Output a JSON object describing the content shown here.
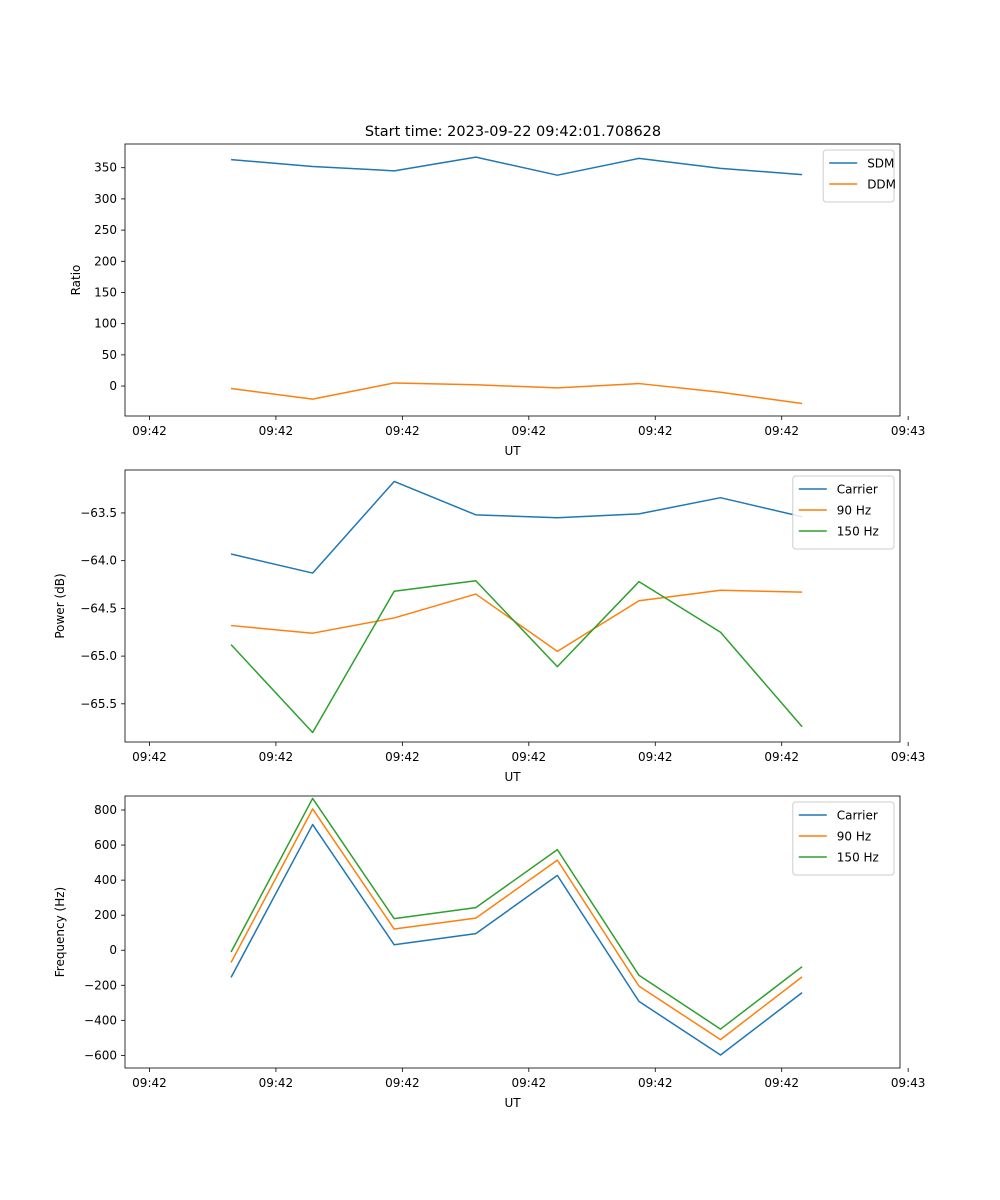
{
  "figure_title": "Start time: 2023-09-22 09:42:01.708628",
  "colors": {
    "blue": "#1f77b4",
    "orange": "#ff7f0e",
    "green": "#2ca02c"
  },
  "chart_data": [
    {
      "type": "line",
      "title": "Start time: 2023-09-22 09:42:01.708628",
      "xlabel": "UT",
      "ylabel": "Ratio",
      "xlim": [
        -0.3,
        9.2
      ],
      "ylim": [
        -48,
        388
      ],
      "x": [
        1,
        2,
        3,
        4,
        5,
        6,
        7,
        8
      ],
      "xticks": [
        0,
        1.55,
        3.1,
        4.65,
        6.2,
        7.75,
        9.3
      ],
      "xtick_labels": [
        "09:42",
        "09:42",
        "09:42",
        "09:42",
        "09:42",
        "09:42",
        "09:43"
      ],
      "yticks": [
        0,
        50,
        100,
        150,
        200,
        250,
        300,
        350
      ],
      "ytick_labels": [
        "0",
        "50",
        "100",
        "150",
        "200",
        "250",
        "300",
        "350"
      ],
      "legend_position": "top-right",
      "series": [
        {
          "name": "SDM",
          "color": "#1f77b4",
          "values": [
            363,
            352,
            345,
            367,
            338,
            365,
            349,
            339
          ]
        },
        {
          "name": "DDM",
          "color": "#ff7f0e",
          "values": [
            -4,
            -21,
            5,
            2,
            -3,
            4,
            -10,
            -28
          ]
        }
      ]
    },
    {
      "type": "line",
      "title": "",
      "xlabel": "UT",
      "ylabel": "Power (dB)",
      "xlim": [
        -0.3,
        9.2
      ],
      "ylim": [
        -65.9,
        -63.05
      ],
      "x": [
        1,
        2,
        3,
        4,
        5,
        6,
        7,
        8
      ],
      "xticks": [
        0,
        1.55,
        3.1,
        4.65,
        6.2,
        7.75,
        9.3
      ],
      "xtick_labels": [
        "09:42",
        "09:42",
        "09:42",
        "09:42",
        "09:42",
        "09:42",
        "09:43"
      ],
      "yticks": [
        -65.5,
        -65.0,
        -64.5,
        -64.0,
        -63.5
      ],
      "ytick_labels": [
        "−65.5",
        "−65.0",
        "−64.5",
        "−64.0",
        "−63.5"
      ],
      "legend_position": "top-right",
      "series": [
        {
          "name": "Carrier",
          "color": "#1f77b4",
          "values": [
            -63.93,
            -64.13,
            -63.17,
            -63.52,
            -63.55,
            -63.51,
            -63.34,
            -63.54
          ]
        },
        {
          "name": "90 Hz",
          "color": "#ff7f0e",
          "values": [
            -64.68,
            -64.76,
            -64.6,
            -64.35,
            -64.95,
            -64.42,
            -64.31,
            -64.33
          ]
        },
        {
          "name": "150 Hz",
          "color": "#2ca02c",
          "values": [
            -64.88,
            -65.8,
            -64.32,
            -64.21,
            -65.11,
            -64.22,
            -64.75,
            -65.74
          ]
        }
      ]
    },
    {
      "type": "line",
      "title": "",
      "xlabel": "UT",
      "ylabel": "Frequency (Hz)",
      "xlim": [
        -0.3,
        9.2
      ],
      "ylim": [
        -672,
        880
      ],
      "x": [
        1,
        2,
        3,
        4,
        5,
        6,
        7,
        8
      ],
      "xticks": [
        0,
        1.55,
        3.1,
        4.65,
        6.2,
        7.75,
        9.3
      ],
      "xtick_labels": [
        "09:42",
        "09:42",
        "09:42",
        "09:42",
        "09:42",
        "09:42",
        "09:43"
      ],
      "yticks": [
        -600,
        -400,
        -200,
        0,
        200,
        400,
        600,
        800
      ],
      "ytick_labels": [
        "−600",
        "−400",
        "−200",
        "0",
        "200",
        "400",
        "600",
        "800"
      ],
      "legend_position": "top-right",
      "series": [
        {
          "name": "Carrier",
          "color": "#1f77b4",
          "values": [
            -155,
            717,
            31,
            95,
            427,
            -292,
            -598,
            -242
          ]
        },
        {
          "name": "90 Hz",
          "color": "#ff7f0e",
          "values": [
            -70,
            806,
            121,
            183,
            514,
            -205,
            -510,
            -152
          ]
        },
        {
          "name": "150 Hz",
          "color": "#2ca02c",
          "values": [
            -10,
            866,
            180,
            243,
            574,
            -143,
            -450,
            -94
          ]
        }
      ]
    }
  ]
}
